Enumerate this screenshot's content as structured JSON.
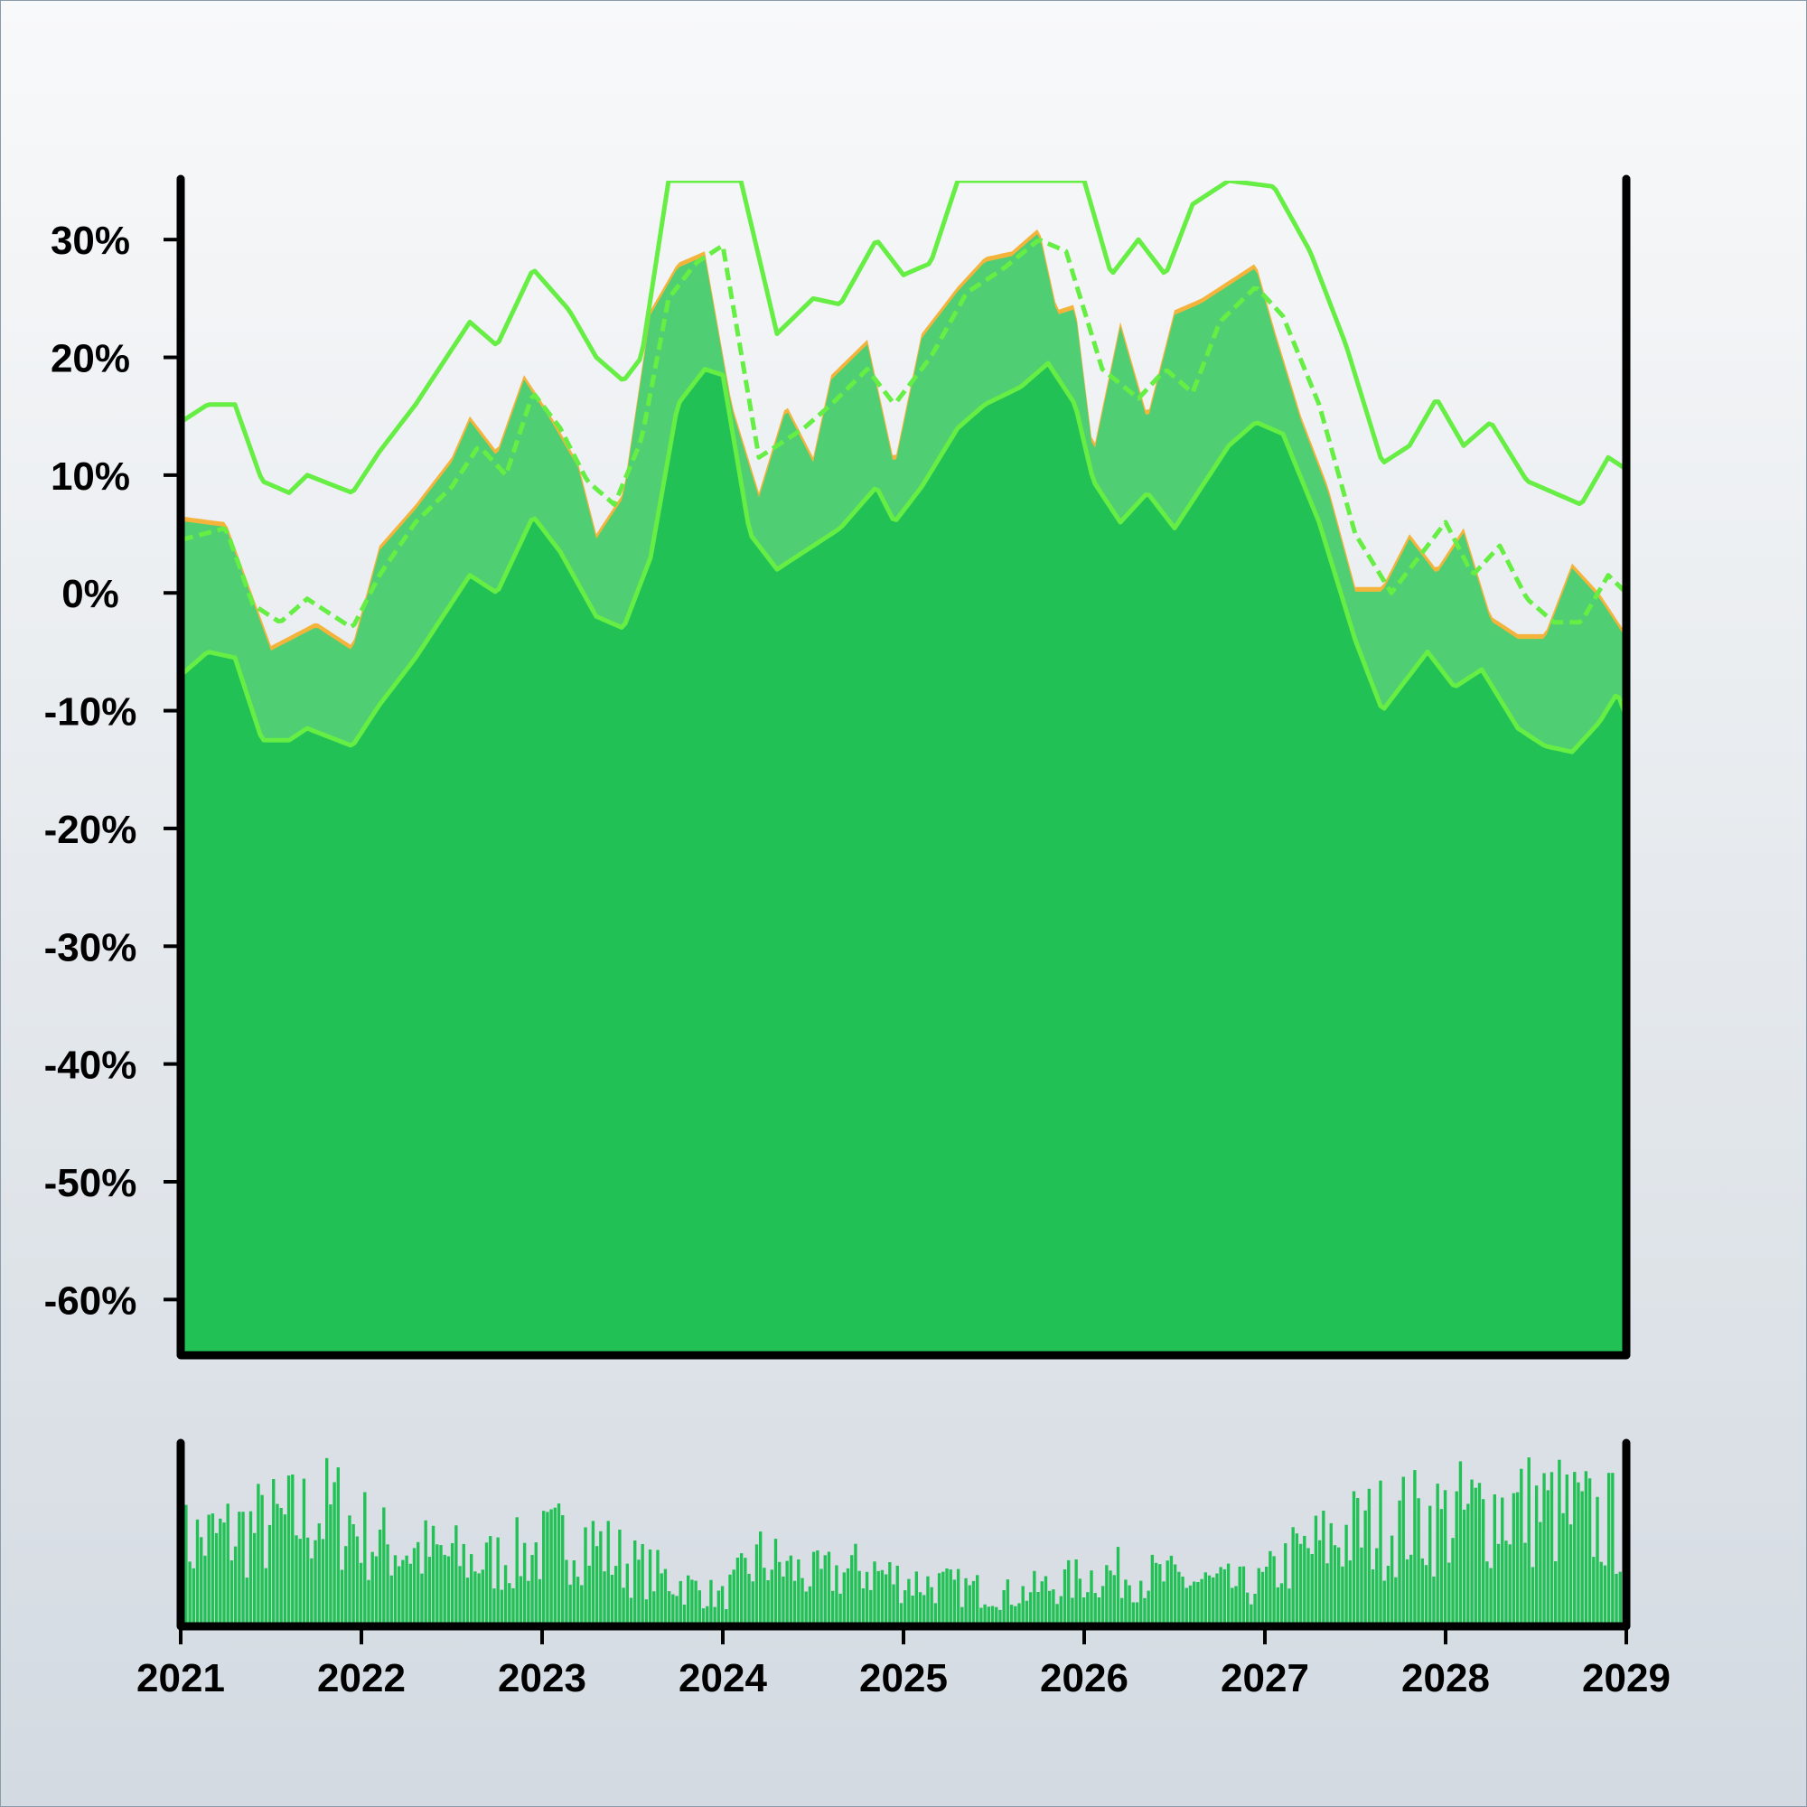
{
  "chart_data": {
    "type": "area",
    "title": "",
    "xlabel": "",
    "ylabel": "",
    "xlim": [
      2021,
      2029
    ],
    "ylim": [
      -64.5,
      35
    ],
    "x_ticks": [
      "2021",
      "2022",
      "2023",
      "2024",
      "2025",
      "2026",
      "2027",
      "2028",
      "2029"
    ],
    "y_ticks": [
      "30%",
      "20%",
      "10%",
      "0%",
      "-10%",
      "-20%",
      "-30%",
      "-40%",
      "-50%",
      "-60%"
    ],
    "y_tick_values": [
      30,
      20,
      10,
      0,
      -10,
      -20,
      -30,
      -40,
      -50,
      -60
    ],
    "grid": false,
    "legend": "none",
    "series": [
      {
        "role": "price",
        "color": "#f4b43c",
        "points": [
          [
            2021.0,
            6.5
          ],
          [
            2021.25,
            6.0
          ],
          [
            2021.5,
            -4.5
          ],
          [
            2021.75,
            -2.5
          ],
          [
            2021.95,
            -4.5
          ],
          [
            2022.1,
            4.0
          ],
          [
            2022.3,
            7.5
          ],
          [
            2022.5,
            11.5
          ],
          [
            2022.6,
            15.0
          ],
          [
            2022.75,
            12.0
          ],
          [
            2022.9,
            18.5
          ],
          [
            2023.05,
            15.0
          ],
          [
            2023.2,
            11.0
          ],
          [
            2023.3,
            5.0
          ],
          [
            2023.45,
            8.5
          ],
          [
            2023.6,
            24.0
          ],
          [
            2023.75,
            28.0
          ],
          [
            2023.9,
            29.0
          ],
          [
            2024.05,
            16.0
          ],
          [
            2024.2,
            8.5
          ],
          [
            2024.35,
            16.0
          ],
          [
            2024.5,
            11.5
          ],
          [
            2024.6,
            18.5
          ],
          [
            2024.8,
            21.5
          ],
          [
            2024.95,
            11.0
          ],
          [
            2025.1,
            22.0
          ],
          [
            2025.3,
            26.0
          ],
          [
            2025.45,
            28.5
          ],
          [
            2025.6,
            29.0
          ],
          [
            2025.75,
            31.0
          ],
          [
            2025.85,
            24.0
          ],
          [
            2025.95,
            24.5
          ],
          [
            2026.05,
            12.0
          ],
          [
            2026.2,
            23.0
          ],
          [
            2026.35,
            15.0
          ],
          [
            2026.5,
            24.0
          ],
          [
            2026.65,
            25.0
          ],
          [
            2026.8,
            26.5
          ],
          [
            2026.95,
            28.0
          ],
          [
            2027.05,
            22.5
          ],
          [
            2027.2,
            15.0
          ],
          [
            2027.35,
            9.0
          ],
          [
            2027.5,
            0.5
          ],
          [
            2027.65,
            0.5
          ],
          [
            2027.8,
            5.0
          ],
          [
            2027.95,
            2.0
          ],
          [
            2028.1,
            5.5
          ],
          [
            2028.25,
            -2.0
          ],
          [
            2028.4,
            -3.5
          ],
          [
            2028.55,
            -3.5
          ],
          [
            2028.7,
            2.5
          ],
          [
            2028.85,
            0.0
          ],
          [
            2029.0,
            -3.5
          ]
        ]
      },
      {
        "role": "moving-average",
        "color": "#66ee44",
        "points": [
          [
            2021.0,
            4.5
          ],
          [
            2021.25,
            5.5
          ],
          [
            2021.4,
            -1.0
          ],
          [
            2021.55,
            -2.5
          ],
          [
            2021.7,
            -0.5
          ],
          [
            2021.95,
            -3.0
          ],
          [
            2022.1,
            1.5
          ],
          [
            2022.3,
            6.0
          ],
          [
            2022.5,
            9.0
          ],
          [
            2022.65,
            12.5
          ],
          [
            2022.8,
            10.0
          ],
          [
            2022.95,
            17.0
          ],
          [
            2023.1,
            14.0
          ],
          [
            2023.25,
            9.5
          ],
          [
            2023.4,
            7.5
          ],
          [
            2023.55,
            13.0
          ],
          [
            2023.7,
            25.0
          ],
          [
            2023.85,
            28.0
          ],
          [
            2024.0,
            29.5
          ],
          [
            2024.2,
            11.5
          ],
          [
            2024.45,
            14.0
          ],
          [
            2024.6,
            16.0
          ],
          [
            2024.8,
            19.0
          ],
          [
            2024.95,
            16.0
          ],
          [
            2025.15,
            20.0
          ],
          [
            2025.35,
            25.5
          ],
          [
            2025.55,
            27.5
          ],
          [
            2025.75,
            30.0
          ],
          [
            2025.9,
            29.0
          ],
          [
            2026.1,
            19.0
          ],
          [
            2026.3,
            16.5
          ],
          [
            2026.45,
            19.0
          ],
          [
            2026.6,
            17.0
          ],
          [
            2026.75,
            23.0
          ],
          [
            2026.95,
            26.0
          ],
          [
            2027.1,
            23.5
          ],
          [
            2027.3,
            16.0
          ],
          [
            2027.5,
            5.0
          ],
          [
            2027.7,
            0.0
          ],
          [
            2027.85,
            3.0
          ],
          [
            2028.0,
            6.0
          ],
          [
            2028.15,
            1.5
          ],
          [
            2028.3,
            4.0
          ],
          [
            2028.45,
            -0.5
          ],
          [
            2028.6,
            -2.5
          ],
          [
            2028.75,
            -2.5
          ],
          [
            2028.9,
            1.5
          ],
          [
            2029.0,
            0.0
          ]
        ]
      },
      {
        "role": "upper-band",
        "color": "#66ee44",
        "points": [
          [
            2021.0,
            14.5
          ],
          [
            2021.15,
            16.0
          ],
          [
            2021.3,
            16.0
          ],
          [
            2021.45,
            9.5
          ],
          [
            2021.6,
            8.5
          ],
          [
            2021.7,
            10.0
          ],
          [
            2021.95,
            8.5
          ],
          [
            2022.1,
            12.0
          ],
          [
            2022.3,
            16.0
          ],
          [
            2022.45,
            19.5
          ],
          [
            2022.6,
            23.0
          ],
          [
            2022.75,
            21.0
          ],
          [
            2022.95,
            27.5
          ],
          [
            2023.15,
            24.0
          ],
          [
            2023.3,
            20.0
          ],
          [
            2023.45,
            18.0
          ],
          [
            2023.55,
            20.0
          ],
          [
            2023.7,
            35.0
          ],
          [
            2024.1,
            35.0
          ],
          [
            2024.3,
            22.0
          ],
          [
            2024.5,
            25.0
          ],
          [
            2024.65,
            24.5
          ],
          [
            2024.85,
            30.0
          ],
          [
            2025.0,
            27.0
          ],
          [
            2025.15,
            28.0
          ],
          [
            2025.3,
            35.0
          ],
          [
            2025.65,
            35.0
          ],
          [
            2026.0,
            35.0
          ],
          [
            2026.15,
            27.0
          ],
          [
            2026.3,
            30.0
          ],
          [
            2026.45,
            27.0
          ],
          [
            2026.6,
            33.0
          ],
          [
            2026.8,
            35.0
          ],
          [
            2027.05,
            34.5
          ],
          [
            2027.25,
            29.0
          ],
          [
            2027.45,
            21.0
          ],
          [
            2027.65,
            11.0
          ],
          [
            2027.8,
            12.5
          ],
          [
            2027.95,
            16.5
          ],
          [
            2028.1,
            12.5
          ],
          [
            2028.25,
            14.5
          ],
          [
            2028.45,
            9.5
          ],
          [
            2028.6,
            8.5
          ],
          [
            2028.75,
            7.5
          ],
          [
            2028.9,
            11.5
          ],
          [
            2029.0,
            10.5
          ]
        ]
      },
      {
        "role": "lower-band",
        "color": "#66ee44",
        "points": [
          [
            2021.0,
            -7.0
          ],
          [
            2021.15,
            -5.0
          ],
          [
            2021.3,
            -5.5
          ],
          [
            2021.45,
            -12.5
          ],
          [
            2021.6,
            -12.5
          ],
          [
            2021.7,
            -11.5
          ],
          [
            2021.95,
            -13.0
          ],
          [
            2022.1,
            -9.5
          ],
          [
            2022.3,
            -5.5
          ],
          [
            2022.45,
            -2.0
          ],
          [
            2022.6,
            1.5
          ],
          [
            2022.75,
            0.0
          ],
          [
            2022.95,
            6.5
          ],
          [
            2023.1,
            3.5
          ],
          [
            2023.3,
            -2.0
          ],
          [
            2023.45,
            -3.0
          ],
          [
            2023.6,
            3.0
          ],
          [
            2023.75,
            16.0
          ],
          [
            2023.9,
            19.0
          ],
          [
            2024.0,
            18.5
          ],
          [
            2024.15,
            5.0
          ],
          [
            2024.3,
            2.0
          ],
          [
            2024.5,
            4.0
          ],
          [
            2024.65,
            5.5
          ],
          [
            2024.85,
            9.0
          ],
          [
            2024.95,
            6.0
          ],
          [
            2025.1,
            9.0
          ],
          [
            2025.3,
            14.0
          ],
          [
            2025.45,
            16.0
          ],
          [
            2025.65,
            17.5
          ],
          [
            2025.8,
            19.5
          ],
          [
            2025.95,
            16.0
          ],
          [
            2026.05,
            9.5
          ],
          [
            2026.2,
            6.0
          ],
          [
            2026.35,
            8.5
          ],
          [
            2026.5,
            5.5
          ],
          [
            2026.65,
            9.0
          ],
          [
            2026.8,
            12.5
          ],
          [
            2026.95,
            14.5
          ],
          [
            2027.1,
            13.5
          ],
          [
            2027.3,
            6.0
          ],
          [
            2027.5,
            -4.0
          ],
          [
            2027.65,
            -10.0
          ],
          [
            2027.8,
            -7.0
          ],
          [
            2027.9,
            -5.0
          ],
          [
            2028.05,
            -8.0
          ],
          [
            2028.2,
            -6.5
          ],
          [
            2028.4,
            -11.5
          ],
          [
            2028.55,
            -13.0
          ],
          [
            2028.7,
            -13.5
          ],
          [
            2028.85,
            -11.0
          ],
          [
            2028.95,
            -8.5
          ],
          [
            2029.0,
            -10.5
          ]
        ]
      }
    ],
    "volume": {
      "color": "#22c155",
      "envelope": [
        [
          2021.0,
          0.55
        ],
        [
          2021.3,
          0.62
        ],
        [
          2021.6,
          0.7
        ],
        [
          2021.85,
          0.78
        ],
        [
          2022.1,
          0.55
        ],
        [
          2022.4,
          0.48
        ],
        [
          2022.7,
          0.42
        ],
        [
          2022.95,
          0.5
        ],
        [
          2023.2,
          0.62
        ],
        [
          2023.5,
          0.4
        ],
        [
          2023.8,
          0.26
        ],
        [
          2024.0,
          0.18
        ],
        [
          2024.2,
          0.45
        ],
        [
          2024.5,
          0.32
        ],
        [
          2024.8,
          0.38
        ],
        [
          2025.0,
          0.3
        ],
        [
          2025.3,
          0.25
        ],
        [
          2025.6,
          0.2
        ],
        [
          2025.9,
          0.28
        ],
        [
          2026.1,
          0.35
        ],
        [
          2026.4,
          0.32
        ],
        [
          2026.7,
          0.28
        ],
        [
          2026.95,
          0.25
        ],
        [
          2027.15,
          0.45
        ],
        [
          2027.45,
          0.62
        ],
        [
          2027.75,
          0.7
        ],
        [
          2028.0,
          0.72
        ],
        [
          2028.3,
          0.8
        ],
        [
          2028.6,
          0.78
        ],
        [
          2028.85,
          0.7
        ],
        [
          2029.0,
          0.68
        ]
      ]
    }
  }
}
